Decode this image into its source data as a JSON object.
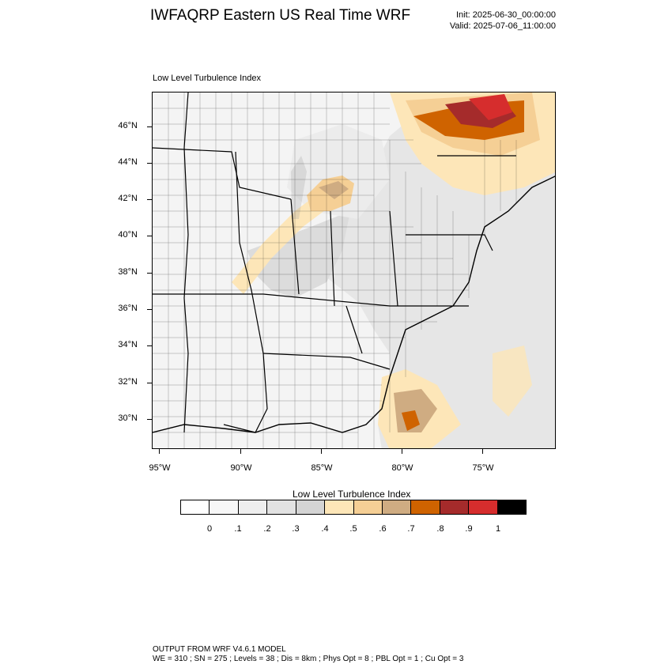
{
  "header": {
    "title": "IWFAQRP Eastern US Real Time WRF",
    "init": "Init: 2025-06-30_00:00:00",
    "valid": "Valid: 2025-07-06_11:00:00"
  },
  "panel_title": "Low Level Turbulence Index",
  "map": {
    "lat_labels": [
      "46°N",
      "44°N",
      "42°N",
      "40°N",
      "38°N",
      "36°N",
      "34°N",
      "32°N",
      "30°N"
    ],
    "lon_labels": [
      "95°W",
      "90°W",
      "85°W",
      "80°W",
      "75°W"
    ]
  },
  "colorbar": {
    "title": "Low Level Turbulence Index",
    "colors": [
      "#ffffff",
      "#f7f7f7",
      "#eeeeee",
      "#e2e2e2",
      "#d4d4d4",
      "#fde6b8",
      "#f5cf95",
      "#cfac82",
      "#cf6300",
      "#a52b2b",
      "#d62d2d",
      "#000000"
    ],
    "labels": [
      "0",
      ".1",
      ".2",
      ".3",
      ".4",
      ".5",
      ".6",
      ".7",
      ".8",
      ".9",
      "1"
    ]
  },
  "footer": {
    "line1": "OUTPUT FROM WRF V4.6.1 MODEL",
    "line2": "WE = 310 ; SN = 275 ; Levels = 38 ; Dis = 8km ; Phys Opt = 8 ; PBL Opt = 1 ; Cu Opt = 3"
  }
}
